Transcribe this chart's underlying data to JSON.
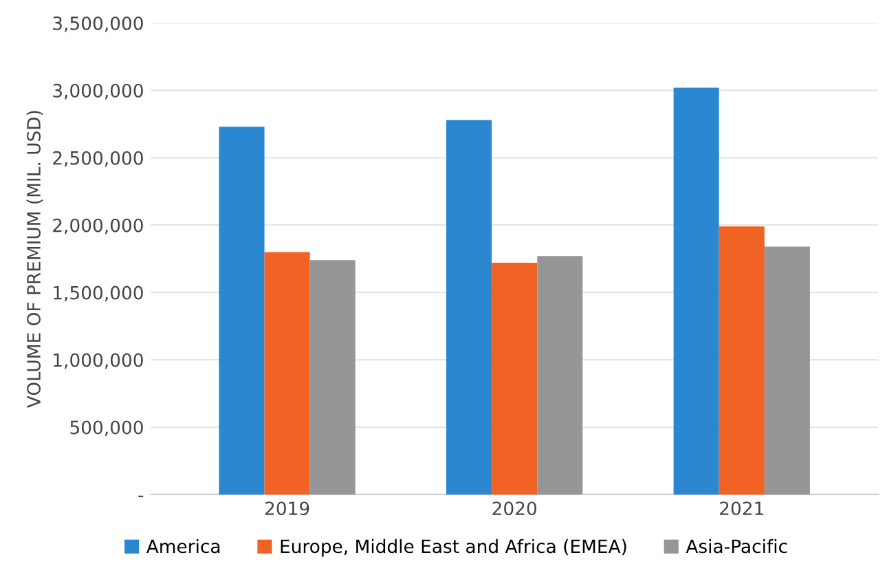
{
  "chart_data": {
    "type": "bar",
    "ylabel": "VOLUME OF PREMIUM (MIL. USD)",
    "categories": [
      "2019",
      "2020",
      "2021"
    ],
    "series": [
      {
        "name": "America",
        "color": "#2a87d0",
        "values": [
          2730000,
          2780000,
          3020000
        ]
      },
      {
        "name": "Europe, Middle East and Africa (EMEA)",
        "color": "#f06325",
        "values": [
          1800000,
          1720000,
          1990000
        ]
      },
      {
        "name": "Asia-Pacific",
        "color": "#969696",
        "values": [
          1740000,
          1770000,
          1840000
        ]
      }
    ],
    "ylim": [
      0,
      3500000
    ],
    "yticks": [
      {
        "value": 0,
        "label": "-"
      },
      {
        "value": 500000,
        "label": "500,000"
      },
      {
        "value": 1000000,
        "label": "1,000,000"
      },
      {
        "value": 1500000,
        "label": "1,500,000"
      },
      {
        "value": 2000000,
        "label": "2,000,000"
      },
      {
        "value": 2500000,
        "label": "2,500,000"
      },
      {
        "value": 3000000,
        "label": "3,000,000"
      },
      {
        "value": 3500000,
        "label": "3,500,000"
      }
    ],
    "grid": "y",
    "legend": "bottom"
  }
}
